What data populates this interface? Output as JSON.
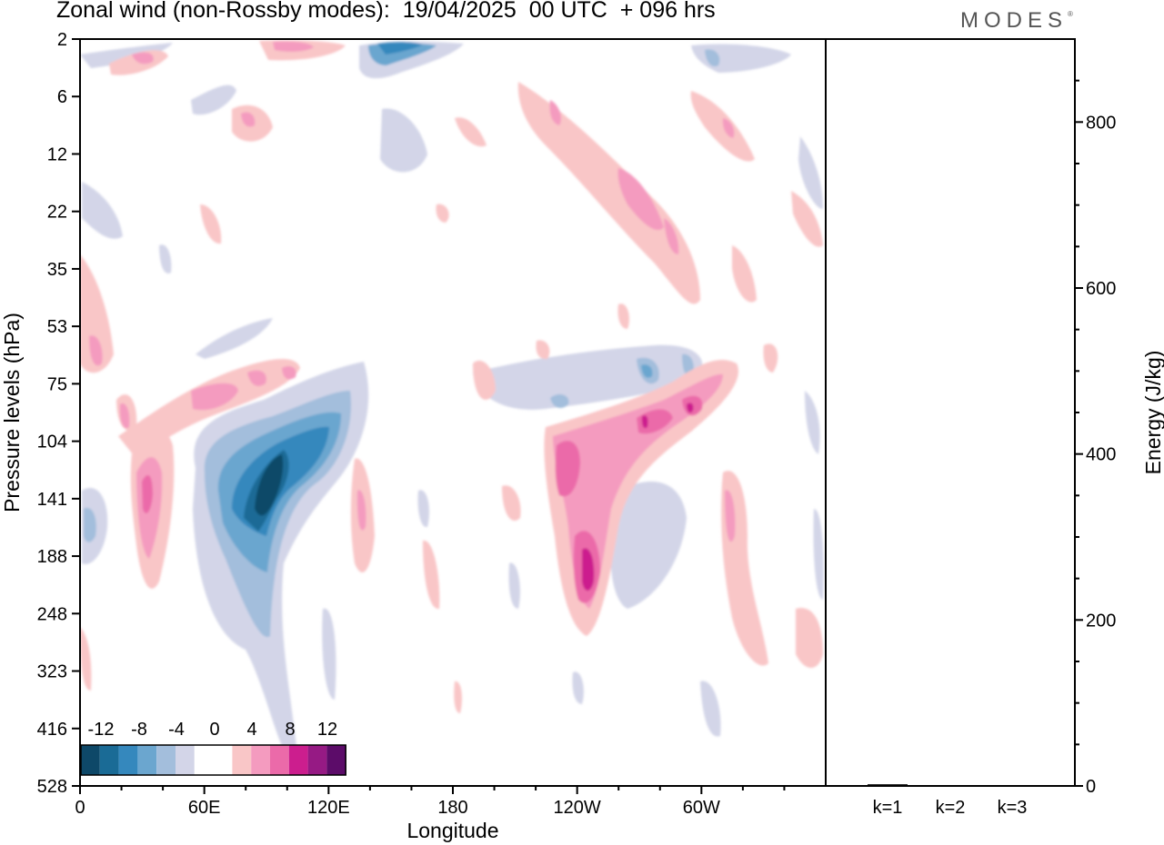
{
  "title": "Zonal wind (non-Rossby modes):  19/04/2025  00 UTC  + 096 hrs",
  "brand": "MODES",
  "brand_mark": "®",
  "colors": {
    "negative": [
      "#0e4868",
      "#1a6b96",
      "#3588bd",
      "#6ba6cf",
      "#a3bedc",
      "#d3d5e8"
    ],
    "zero": "#ffffff",
    "positive": [
      "#f9c6c7",
      "#f49bbf",
      "#eb6aa9",
      "#cc1e8e",
      "#961a84",
      "#5c0c69"
    ]
  },
  "chart_data": [
    {
      "type": "heatmap",
      "title": "Zonal wind (non-Rossby modes):  19/04/2025  00 UTC  + 096 hrs",
      "xlabel": "Longitude",
      "ylabel": "Pressure levels (hPa)",
      "x_ticks": [
        "0",
        "60E",
        "120E",
        "180",
        "120W",
        "60W"
      ],
      "y_ticks": [
        "2",
        "6",
        "12",
        "22",
        "35",
        "53",
        "75",
        "104",
        "141",
        "188",
        "248",
        "323",
        "416",
        "528"
      ],
      "colorbar": {
        "labels": [
          "-12",
          "-8",
          "-4",
          "0",
          "4",
          "8",
          "12"
        ],
        "levels": [
          -14,
          -12,
          -10,
          -8,
          -6,
          -4,
          -2,
          2,
          4,
          6,
          8,
          10,
          12,
          14
        ]
      },
      "features": [
        {
          "lon": 85,
          "level": "141",
          "value": -12
        },
        {
          "lon": 95,
          "level": "104",
          "value": -10
        },
        {
          "lon": 70,
          "level": "188",
          "value": -7
        },
        {
          "lon": 30,
          "level": "141",
          "value": 8
        },
        {
          "lon": 237,
          "level": "188",
          "value": 11
        },
        {
          "lon": 215,
          "level": "141",
          "value": 7
        },
        {
          "lon": 270,
          "level": "104",
          "value": 8
        },
        {
          "lon": 135,
          "level": "2",
          "value": -9
        }
      ]
    },
    {
      "type": "bar",
      "ylabel": "Energy (J/kg)",
      "categories": [
        "k=1",
        "k=2",
        "k=3"
      ],
      "values": [
        2,
        1,
        1
      ],
      "ylim": [
        0,
        900
      ],
      "y_ticks": [
        0,
        200,
        400,
        600,
        800
      ]
    }
  ]
}
